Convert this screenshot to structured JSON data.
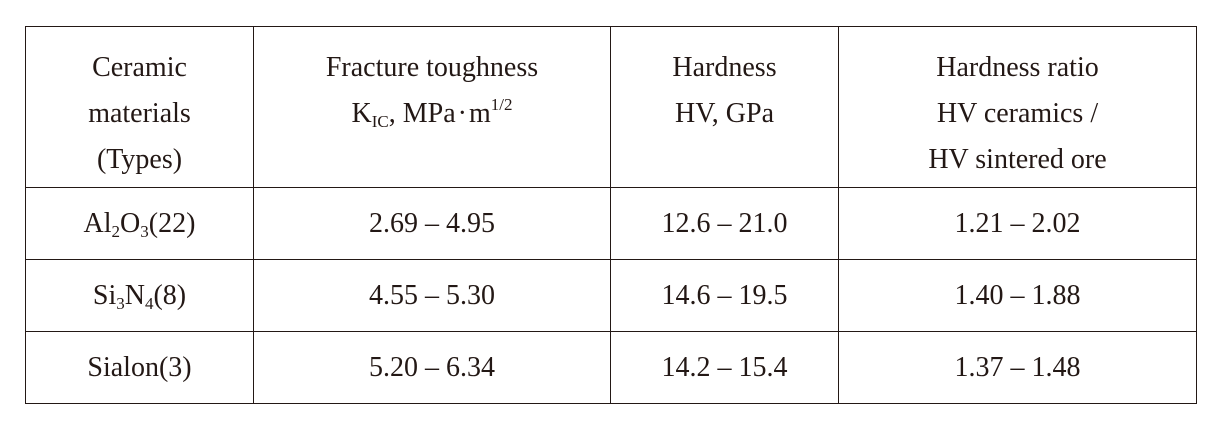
{
  "table": {
    "headers": [
      {
        "lines": [
          "Ceramic",
          "materials",
          "(Types)"
        ]
      },
      {
        "line1": "Fracture toughness",
        "k": "K",
        "k_sub": "IC",
        "unit": ", MPa",
        "dot": "·",
        "m": "m",
        "m_sup": "1/2"
      },
      {
        "lines": [
          "Hardness",
          "HV, GPa"
        ]
      },
      {
        "lines": [
          "Hardness ratio",
          "HV ceramics /",
          "HV sintered ore"
        ]
      }
    ],
    "rows": [
      {
        "material": [
          {
            "t": "Al"
          },
          {
            "sub": "2"
          },
          {
            "t": "O"
          },
          {
            "sub": "3"
          },
          {
            "t": "(22)"
          }
        ],
        "toughness": "2.69 – 4.95",
        "hardness": "12.6 – 21.0",
        "ratio": "1.21 – 2.02"
      },
      {
        "material": [
          {
            "t": "Si"
          },
          {
            "sub": "3"
          },
          {
            "t": "N"
          },
          {
            "sub": "4"
          },
          {
            "t": "(8)"
          }
        ],
        "toughness": "4.55 – 5.30",
        "hardness": "14.6 – 19.5",
        "ratio": "1.40 – 1.88"
      },
      {
        "material": [
          {
            "t": "Sialon(3)"
          }
        ],
        "toughness": "5.20 – 6.34",
        "hardness": "14.2 – 15.4",
        "ratio": "1.37 – 1.48"
      }
    ]
  }
}
